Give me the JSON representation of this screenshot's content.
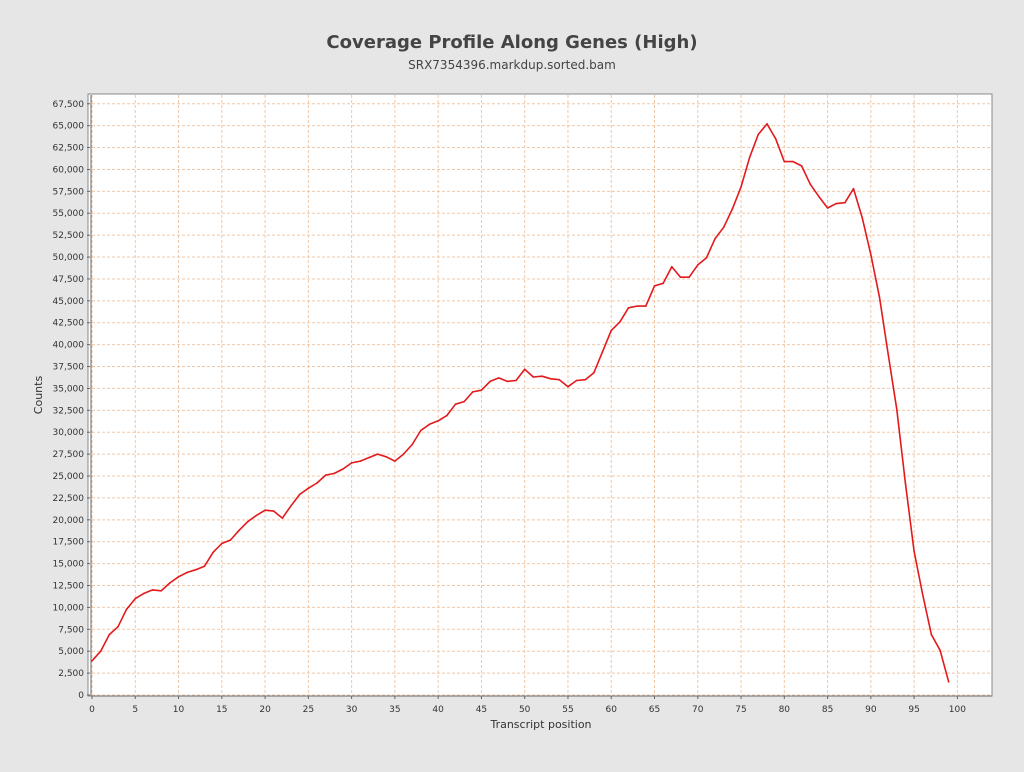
{
  "chart_data": {
    "type": "line",
    "title": "Coverage Profile Along Genes (High)",
    "subtitle": "SRX7354396.markdup.sorted.bam",
    "xlabel": "Transcript position",
    "ylabel": "Counts",
    "xlim": [
      0,
      104
    ],
    "ylim": [
      0,
      68500
    ],
    "x_ticks": [
      0,
      5,
      10,
      15,
      20,
      25,
      30,
      35,
      40,
      45,
      50,
      55,
      60,
      65,
      70,
      75,
      80,
      85,
      90,
      95,
      100
    ],
    "y_ticks": [
      0,
      2500,
      5000,
      7500,
      10000,
      12500,
      15000,
      17500,
      20000,
      22500,
      25000,
      27500,
      30000,
      32500,
      35000,
      37500,
      40000,
      42500,
      45000,
      47500,
      50000,
      52500,
      55000,
      57500,
      60000,
      62500,
      65000,
      67500
    ],
    "y_tick_labels": [
      "0",
      "2,500",
      "5,000",
      "7,500",
      "10,000",
      "12,500",
      "15,000",
      "17,500",
      "20,000",
      "22,500",
      "25,000",
      "27,500",
      "30,000",
      "32,500",
      "35,000",
      "37,500",
      "40,000",
      "42,500",
      "45,000",
      "47,500",
      "50,000",
      "52,500",
      "55,000",
      "57,500",
      "60,000",
      "62,500",
      "65,000",
      "67,500"
    ],
    "grid": true,
    "legend": false,
    "series": [
      {
        "color": "#e31a1c",
        "x": [
          0,
          1,
          2,
          3,
          4,
          5,
          6,
          7,
          8,
          9,
          10,
          11,
          12,
          13,
          14,
          15,
          16,
          17,
          18,
          19,
          20,
          21,
          22,
          23,
          24,
          25,
          26,
          27,
          28,
          29,
          30,
          31,
          32,
          33,
          34,
          35,
          36,
          37,
          38,
          39,
          40,
          41,
          42,
          43,
          44,
          45,
          46,
          47,
          48,
          49,
          50,
          51,
          52,
          53,
          54,
          55,
          56,
          57,
          58,
          59,
          60,
          61,
          62,
          63,
          64,
          65,
          66,
          67,
          68,
          69,
          70,
          71,
          72,
          73,
          74,
          75,
          76,
          77,
          78,
          79,
          80,
          81,
          82,
          83,
          84,
          85,
          86,
          87,
          88,
          89,
          90,
          91,
          92,
          93,
          94,
          95,
          96,
          97,
          98,
          99
        ],
        "values": [
          3900,
          5000,
          6900,
          7800,
          9800,
          11000,
          11600,
          12000,
          11900,
          12800,
          13500,
          14000,
          14300,
          14700,
          16300,
          17300,
          17700,
          18800,
          19800,
          20500,
          21100,
          21000,
          20200,
          21600,
          22900,
          23600,
          24200,
          25100,
          25300,
          25800,
          26500,
          26700,
          27100,
          27500,
          27200,
          26700,
          27500,
          28600,
          30200,
          30900,
          31300,
          31900,
          33200,
          33500,
          34600,
          34800,
          35800,
          36200,
          35800,
          35900,
          37200,
          36300,
          36400,
          36100,
          36000,
          35200,
          35900,
          36000,
          36800,
          39200,
          41600,
          42600,
          44200,
          44400,
          44400,
          46700,
          47000,
          48900,
          47700,
          47700,
          49100,
          49900,
          52100,
          53400,
          55500,
          58000,
          61400,
          64000,
          65200,
          63500,
          60900,
          60900,
          60400,
          58300,
          56900,
          55600,
          56100,
          56200,
          57800,
          54500,
          50300,
          45400,
          38900,
          32600,
          24100,
          16400,
          11400,
          6900,
          5100,
          1500
        ]
      }
    ]
  }
}
